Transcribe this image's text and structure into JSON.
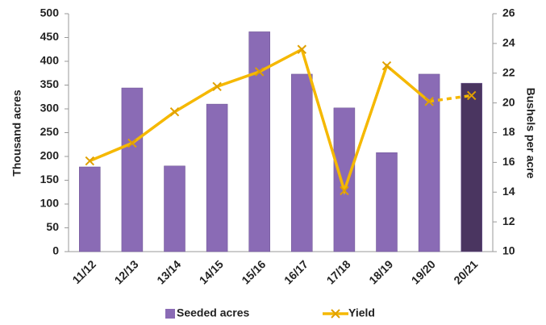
{
  "chart_data": {
    "type": "bar_line",
    "categories": [
      "11/12",
      "12/13",
      "13/14",
      "14/15",
      "15/16",
      "16/17",
      "17/18",
      "18/19",
      "19/20",
      "20/21"
    ],
    "series": [
      {
        "name": "Seeded acres",
        "type": "bar",
        "color": "#8a6bb5",
        "colors": [
          "#8a6bb5",
          "#8a6bb5",
          "#8a6bb5",
          "#8a6bb5",
          "#8a6bb5",
          "#8a6bb5",
          "#8a6bb5",
          "#8a6bb5",
          "#8a6bb5",
          "#4a3560"
        ],
        "values": [
          178,
          344,
          180,
          310,
          462,
          373,
          302,
          208,
          373,
          354
        ]
      },
      {
        "name": "Yield",
        "type": "line",
        "axis": "y2",
        "color": "#f5b800",
        "dashed_from": 8,
        "values": [
          16.1,
          17.3,
          19.4,
          21.1,
          22.1,
          23.6,
          14.1,
          22.5,
          20.1,
          20.5
        ]
      }
    ],
    "y_label": "Thousand acres",
    "y2_label": "Bushels per acre",
    "ylim": [
      0,
      500
    ],
    "yticks": [
      0,
      50,
      100,
      150,
      200,
      250,
      300,
      350,
      400,
      450,
      500
    ],
    "y2lim": [
      10,
      26
    ],
    "y2ticks": [
      10,
      12,
      14,
      16,
      18,
      20,
      22,
      24,
      26
    ],
    "grid": false,
    "legend": "bottom"
  }
}
